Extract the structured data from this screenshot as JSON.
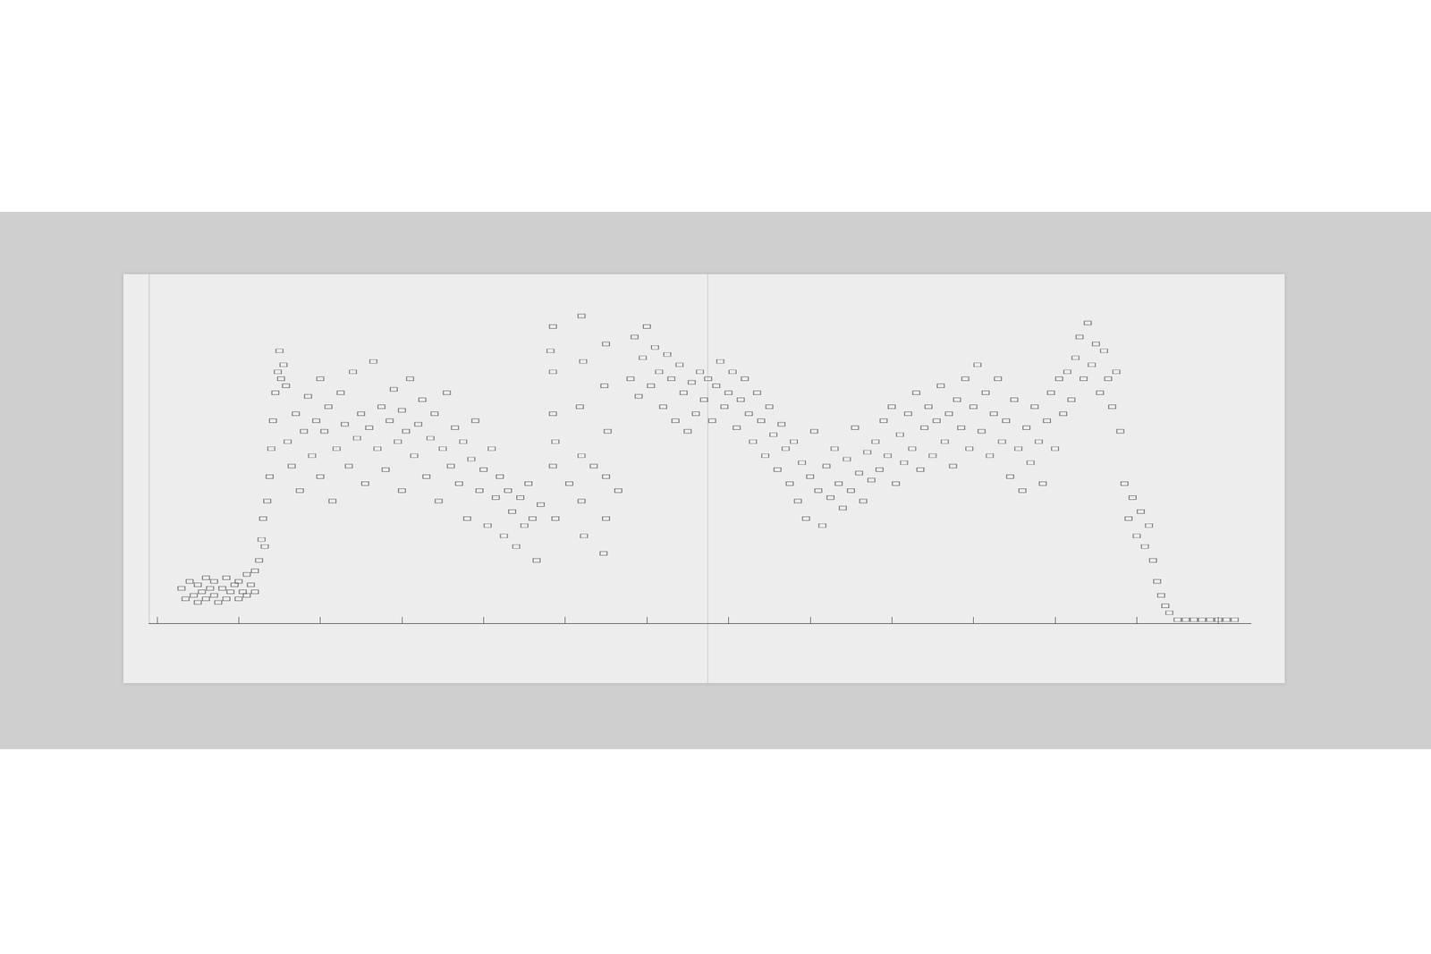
{
  "chart_data": {
    "type": "scatter",
    "xlim": [
      -0.1,
      13.4
    ],
    "xticks": [
      0,
      1,
      2,
      3,
      4,
      5,
      6,
      7,
      8,
      9,
      10,
      11,
      12,
      13
    ],
    "ylim": [
      0,
      100
    ],
    "yticks": [],
    "grid": false,
    "tick_labels": false,
    "series": [
      {
        "color": "#2a2a2a",
        "marker": "rect",
        "values": [
          [
            0.3,
            10
          ],
          [
            0.35,
            7
          ],
          [
            0.4,
            12
          ],
          [
            0.45,
            8
          ],
          [
            0.5,
            6
          ],
          [
            0.5,
            11
          ],
          [
            0.55,
            9
          ],
          [
            0.6,
            13
          ],
          [
            0.6,
            7
          ],
          [
            0.65,
            10
          ],
          [
            0.7,
            8
          ],
          [
            0.7,
            12
          ],
          [
            0.75,
            6
          ],
          [
            0.8,
            10
          ],
          [
            0.85,
            13
          ],
          [
            0.85,
            7
          ],
          [
            0.9,
            9
          ],
          [
            0.95,
            11
          ],
          [
            1.0,
            7
          ],
          [
            1.0,
            12
          ],
          [
            1.05,
            9
          ],
          [
            1.1,
            14
          ],
          [
            1.1,
            8
          ],
          [
            1.15,
            11
          ],
          [
            1.2,
            15
          ],
          [
            1.2,
            9
          ],
          [
            1.25,
            18
          ],
          [
            1.28,
            24
          ],
          [
            1.3,
            30
          ],
          [
            1.32,
            22
          ],
          [
            1.35,
            35
          ],
          [
            1.38,
            42
          ],
          [
            1.4,
            50
          ],
          [
            1.42,
            58
          ],
          [
            1.45,
            66
          ],
          [
            1.48,
            72
          ],
          [
            1.5,
            78
          ],
          [
            1.52,
            70
          ],
          [
            1.55,
            74
          ],
          [
            1.58,
            68
          ],
          [
            1.6,
            52
          ],
          [
            1.65,
            45
          ],
          [
            1.7,
            60
          ],
          [
            1.75,
            38
          ],
          [
            1.8,
            55
          ],
          [
            1.85,
            65
          ],
          [
            1.9,
            48
          ],
          [
            1.95,
            58
          ],
          [
            2.0,
            42
          ],
          [
            2.0,
            70
          ],
          [
            2.05,
            55
          ],
          [
            2.1,
            62
          ],
          [
            2.15,
            35
          ],
          [
            2.2,
            50
          ],
          [
            2.25,
            66
          ],
          [
            2.3,
            57
          ],
          [
            2.35,
            45
          ],
          [
            2.4,
            72
          ],
          [
            2.45,
            53
          ],
          [
            2.5,
            60
          ],
          [
            2.55,
            40
          ],
          [
            2.6,
            56
          ],
          [
            2.65,
            75
          ],
          [
            2.7,
            50
          ],
          [
            2.75,
            62
          ],
          [
            2.8,
            44
          ],
          [
            2.85,
            58
          ],
          [
            2.9,
            67
          ],
          [
            2.95,
            52
          ],
          [
            3.0,
            38
          ],
          [
            3.0,
            61
          ],
          [
            3.05,
            55
          ],
          [
            3.1,
            70
          ],
          [
            3.15,
            48
          ],
          [
            3.2,
            57
          ],
          [
            3.25,
            64
          ],
          [
            3.3,
            42
          ],
          [
            3.35,
            53
          ],
          [
            3.4,
            60
          ],
          [
            3.45,
            35
          ],
          [
            3.5,
            50
          ],
          [
            3.55,
            66
          ],
          [
            3.6,
            45
          ],
          [
            3.65,
            56
          ],
          [
            3.7,
            40
          ],
          [
            3.75,
            52
          ],
          [
            3.8,
            30
          ],
          [
            3.85,
            47
          ],
          [
            3.9,
            58
          ],
          [
            3.95,
            38
          ],
          [
            4.0,
            44
          ],
          [
            4.05,
            28
          ],
          [
            4.1,
            50
          ],
          [
            4.15,
            36
          ],
          [
            4.2,
            42
          ],
          [
            4.25,
            25
          ],
          [
            4.3,
            38
          ],
          [
            4.35,
            32
          ],
          [
            4.4,
            22
          ],
          [
            4.45,
            36
          ],
          [
            4.5,
            28
          ],
          [
            4.55,
            40
          ],
          [
            4.6,
            30
          ],
          [
            4.65,
            18
          ],
          [
            4.7,
            34
          ],
          [
            4.85,
            85
          ],
          [
            4.85,
            72
          ],
          [
            4.85,
            60
          ],
          [
            4.85,
            45
          ],
          [
            4.88,
            30
          ],
          [
            4.82,
            78
          ],
          [
            4.88,
            52
          ],
          [
            5.2,
            88
          ],
          [
            5.22,
            75
          ],
          [
            5.18,
            62
          ],
          [
            5.2,
            48
          ],
          [
            5.2,
            35
          ],
          [
            5.23,
            25
          ],
          [
            5.5,
            80
          ],
          [
            5.48,
            68
          ],
          [
            5.52,
            55
          ],
          [
            5.5,
            42
          ],
          [
            5.5,
            30
          ],
          [
            5.47,
            20
          ],
          [
            5.05,
            40
          ],
          [
            5.35,
            45
          ],
          [
            5.65,
            38
          ],
          [
            5.8,
            70
          ],
          [
            5.85,
            82
          ],
          [
            5.9,
            65
          ],
          [
            5.95,
            76
          ],
          [
            6.0,
            85
          ],
          [
            6.05,
            68
          ],
          [
            6.1,
            79
          ],
          [
            6.15,
            72
          ],
          [
            6.2,
            62
          ],
          [
            6.25,
            77
          ],
          [
            6.3,
            70
          ],
          [
            6.35,
            58
          ],
          [
            6.4,
            74
          ],
          [
            6.45,
            66
          ],
          [
            6.5,
            55
          ],
          [
            6.55,
            69
          ],
          [
            6.6,
            60
          ],
          [
            6.65,
            72
          ],
          [
            6.7,
            64
          ],
          [
            6.75,
            70
          ],
          [
            6.8,
            58
          ],
          [
            6.85,
            68
          ],
          [
            6.9,
            75
          ],
          [
            6.95,
            62
          ],
          [
            7.0,
            66
          ],
          [
            7.05,
            72
          ],
          [
            7.1,
            56
          ],
          [
            7.15,
            64
          ],
          [
            7.2,
            70
          ],
          [
            7.25,
            60
          ],
          [
            7.3,
            52
          ],
          [
            7.35,
            66
          ],
          [
            7.4,
            58
          ],
          [
            7.45,
            48
          ],
          [
            7.5,
            62
          ],
          [
            7.55,
            54
          ],
          [
            7.6,
            44
          ],
          [
            7.65,
            57
          ],
          [
            7.7,
            50
          ],
          [
            7.75,
            40
          ],
          [
            7.8,
            52
          ],
          [
            7.85,
            35
          ],
          [
            7.9,
            46
          ],
          [
            7.95,
            30
          ],
          [
            8.0,
            42
          ],
          [
            8.05,
            55
          ],
          [
            8.1,
            38
          ],
          [
            8.15,
            28
          ],
          [
            8.2,
            45
          ],
          [
            8.25,
            36
          ],
          [
            8.3,
            50
          ],
          [
            8.35,
            40
          ],
          [
            8.4,
            33
          ],
          [
            8.45,
            47
          ],
          [
            8.5,
            38
          ],
          [
            8.55,
            56
          ],
          [
            8.6,
            43
          ],
          [
            8.65,
            35
          ],
          [
            8.7,
            49
          ],
          [
            8.75,
            41
          ],
          [
            8.8,
            52
          ],
          [
            8.85,
            44
          ],
          [
            8.9,
            58
          ],
          [
            8.95,
            48
          ],
          [
            9.0,
            62
          ],
          [
            9.05,
            40
          ],
          [
            9.1,
            54
          ],
          [
            9.15,
            46
          ],
          [
            9.2,
            60
          ],
          [
            9.25,
            50
          ],
          [
            9.3,
            66
          ],
          [
            9.35,
            44
          ],
          [
            9.4,
            56
          ],
          [
            9.45,
            62
          ],
          [
            9.5,
            48
          ],
          [
            9.55,
            58
          ],
          [
            9.6,
            68
          ],
          [
            9.65,
            52
          ],
          [
            9.7,
            60
          ],
          [
            9.75,
            45
          ],
          [
            9.8,
            64
          ],
          [
            9.85,
            56
          ],
          [
            9.9,
            70
          ],
          [
            9.95,
            50
          ],
          [
            10.0,
            62
          ],
          [
            10.05,
            74
          ],
          [
            10.1,
            55
          ],
          [
            10.15,
            66
          ],
          [
            10.2,
            48
          ],
          [
            10.25,
            60
          ],
          [
            10.3,
            70
          ],
          [
            10.35,
            52
          ],
          [
            10.4,
            58
          ],
          [
            10.45,
            42
          ],
          [
            10.5,
            64
          ],
          [
            10.55,
            50
          ],
          [
            10.6,
            38
          ],
          [
            10.65,
            56
          ],
          [
            10.7,
            46
          ],
          [
            10.75,
            62
          ],
          [
            10.8,
            52
          ],
          [
            10.85,
            40
          ],
          [
            10.9,
            58
          ],
          [
            10.95,
            66
          ],
          [
            11.0,
            50
          ],
          [
            11.05,
            70
          ],
          [
            11.1,
            60
          ],
          [
            11.15,
            72
          ],
          [
            11.2,
            64
          ],
          [
            11.25,
            76
          ],
          [
            11.3,
            82
          ],
          [
            11.35,
            70
          ],
          [
            11.4,
            86
          ],
          [
            11.45,
            74
          ],
          [
            11.5,
            80
          ],
          [
            11.55,
            66
          ],
          [
            11.6,
            78
          ],
          [
            11.65,
            70
          ],
          [
            11.7,
            62
          ],
          [
            11.75,
            72
          ],
          [
            11.8,
            55
          ],
          [
            11.85,
            40
          ],
          [
            11.9,
            30
          ],
          [
            11.95,
            36
          ],
          [
            12.0,
            25
          ],
          [
            12.05,
            32
          ],
          [
            12.1,
            22
          ],
          [
            12.15,
            28
          ],
          [
            12.2,
            18
          ],
          [
            12.25,
            12
          ],
          [
            12.3,
            8
          ],
          [
            12.35,
            5
          ],
          [
            12.4,
            3
          ],
          [
            12.5,
            1
          ],
          [
            12.6,
            1
          ],
          [
            12.7,
            1
          ],
          [
            12.8,
            1
          ],
          [
            12.9,
            1
          ],
          [
            13.0,
            1
          ],
          [
            13.1,
            1
          ],
          [
            13.2,
            1
          ]
        ]
      }
    ]
  }
}
